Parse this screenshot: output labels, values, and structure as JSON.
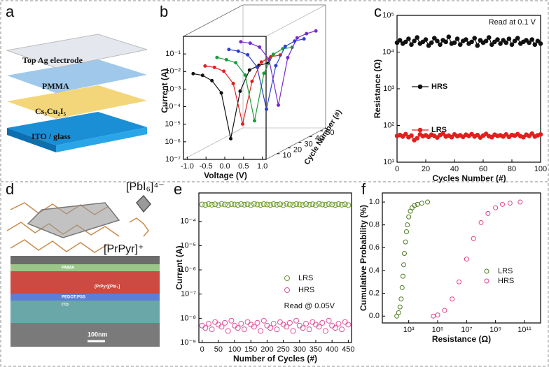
{
  "panel_labels": [
    "a",
    "b",
    "c",
    "d",
    "e",
    "f"
  ],
  "device_stack": {
    "layers": [
      "Top Ag electrode",
      "PMMA",
      "Cs₃Cu₂I₅",
      "ITO / glass"
    ]
  },
  "structure": {
    "octahedron_label": "[PbI₆]⁴⁻",
    "cation_label": "[PrPyr]⁺",
    "sem_layers": [
      "PMMA",
      "(PrPyr)[PbI₃]",
      "PEDOT:PSS",
      "ITO"
    ],
    "scale_bar": "100nm"
  },
  "chart_data": [
    {
      "type": "line",
      "xlabel": "Voltage (V)",
      "ylabel": "Current (A)",
      "zlabel": "Cycle Number (#)",
      "x": [
        -1,
        -0.75,
        -0.5,
        -0.25,
        0,
        0.25,
        0.5,
        0.75,
        1
      ],
      "series": [
        {
          "color": "#111111",
          "values": [
            0.005,
            0.004,
            0.002,
            0.0004,
            1e-06,
            0.0005,
            0.008,
            0.015,
            0.02
          ]
        },
        {
          "color": "#e0201c",
          "values": [
            0.006,
            0.005,
            0.003,
            0.0006,
            3e-06,
            0.0008,
            0.01,
            0.02,
            0.025
          ]
        },
        {
          "color": "#1a9e3a",
          "values": [
            0.008,
            0.006,
            0.004,
            0.0008,
            2e-06,
            0.001,
            0.012,
            0.025,
            0.03
          ]
        },
        {
          "color": "#2a3fd0",
          "values": [
            0.01,
            0.008,
            0.005,
            0.001,
            4e-06,
            0.0012,
            0.015,
            0.03,
            0.04
          ]
        },
        {
          "color": "#7a2ad0",
          "values": [
            0.012,
            0.01,
            0.006,
            0.0012,
            3e-06,
            0.0015,
            0.02,
            0.035,
            0.05
          ]
        }
      ],
      "xlim": [
        -1.1,
        1.1
      ],
      "xticks": [
        {
          "value": -1,
          "label": "-1.0"
        },
        -0.5,
        {
          "value": 0,
          "label": "0.0"
        },
        0.5,
        {
          "value": 1,
          "label": "1.0"
        }
      ],
      "ylim": [
        1e-07,
        1
      ],
      "ylog": true,
      "yticks": [
        {
          "value": 1e-07,
          "label": "10⁻⁷"
        },
        {
          "value": 1e-06,
          "label": "10⁻⁶"
        },
        {
          "value": 1e-05,
          "label": "10⁻⁵"
        },
        {
          "value": 0.0001,
          "label": "10⁻⁴"
        },
        {
          "value": 0.001,
          "label": "10⁻³"
        },
        {
          "value": 0.01,
          "label": "10⁻²"
        },
        {
          "value": 0.1,
          "label": "10⁻¹"
        }
      ],
      "zlim": [
        0,
        55
      ],
      "zticks": [
        10,
        20,
        30,
        40,
        50
      ]
    },
    {
      "type": "line",
      "xlabel": "Cycles Number (#)",
      "ylabel": "Resistance (Ω)",
      "annotation": "Read at 0.1 V",
      "x": [
        0,
        2,
        4,
        6,
        8,
        10,
        12,
        14,
        16,
        18,
        20,
        22,
        24,
        26,
        28,
        30,
        32,
        34,
        36,
        38,
        40,
        42,
        44,
        46,
        48,
        50,
        52,
        54,
        56,
        58,
        60,
        62,
        64,
        66,
        68,
        70,
        72,
        74,
        76,
        78,
        80,
        82,
        84,
        86,
        88,
        90,
        92,
        94,
        96,
        98,
        100
      ],
      "series": [
        {
          "name": "HRS",
          "color": "#111111",
          "values": [
            18000,
            21000,
            17000,
            19000,
            23000,
            16000,
            20000,
            25000,
            17000,
            19000,
            22000,
            15000,
            18000,
            24000,
            20000,
            16000,
            21000,
            19000,
            26000,
            17000,
            18000,
            23000,
            16000,
            20000,
            22000,
            17000,
            19000,
            24000,
            15000,
            21000,
            18000,
            20000,
            25000,
            16000,
            19000,
            22000,
            17000,
            21000,
            18000,
            23000,
            16000,
            20000,
            24000,
            17000,
            19000,
            21000,
            18000,
            22000,
            16000,
            20000,
            17000
          ]
        },
        {
          "name": "LRS",
          "color": "#e0201c",
          "values": [
            52,
            55,
            50,
            58,
            48,
            53,
            40,
            45,
            57,
            51,
            54,
            49,
            56,
            52,
            47,
            55,
            60,
            50,
            53,
            48,
            57,
            51,
            54,
            49,
            56,
            52,
            58,
            50,
            55,
            47,
            53,
            59,
            51,
            48,
            56,
            52,
            54,
            50,
            57,
            49,
            55,
            53,
            58,
            51,
            48,
            56,
            52,
            60,
            50,
            54,
            57
          ]
        }
      ],
      "xlim": [
        0,
        100
      ],
      "xticks": [
        0,
        20,
        40,
        60,
        80,
        100
      ],
      "ylim": [
        10,
        100000
      ],
      "ylog": true,
      "yticks": [
        {
          "value": 10,
          "label": "10¹"
        },
        {
          "value": 100,
          "label": "10²"
        },
        {
          "value": 1000,
          "label": "10³"
        },
        {
          "value": 10000,
          "label": "10⁴"
        },
        {
          "value": 100000,
          "label": "10⁵"
        }
      ]
    },
    {
      "type": "scatter",
      "xlabel": "Number of Cycles (#)",
      "ylabel": "Current (A)",
      "annotation": "Read @ 0.05V",
      "x": [
        0,
        10,
        20,
        30,
        40,
        50,
        60,
        70,
        80,
        90,
        100,
        110,
        120,
        130,
        140,
        150,
        160,
        170,
        180,
        190,
        200,
        210,
        220,
        230,
        240,
        250,
        260,
        270,
        280,
        290,
        300,
        310,
        320,
        330,
        340,
        350,
        360,
        370,
        380,
        390,
        400,
        410,
        420,
        430,
        440,
        450
      ],
      "series": [
        {
          "name": "LRS",
          "color": "#6b9a2a",
          "values": [
            0.0005,
            0.00048,
            0.00052,
            0.00049,
            0.00051,
            0.00047,
            0.00053,
            0.0005,
            0.00048,
            0.00052,
            0.0005,
            0.00048,
            0.00052,
            0.00049,
            0.00051,
            0.00047,
            0.00053,
            0.0005,
            0.00048,
            0.00052,
            0.0005,
            0.00048,
            0.00052,
            0.00049,
            0.00051,
            0.00047,
            0.00053,
            0.0005,
            0.00048,
            0.00052,
            0.0005,
            0.00048,
            0.00052,
            0.00049,
            0.00051,
            0.00047,
            0.00053,
            0.0005,
            0.00048,
            0.00052,
            0.0005,
            0.00048,
            0.00052,
            0.00049,
            0.00051,
            0.00047
          ]
        },
        {
          "name": "HRS",
          "color": "#e0529c",
          "values": [
            5e-09,
            4e-09,
            6e-09,
            3.5e-09,
            7e-09,
            5.5e-09,
            4.5e-09,
            6.5e-09,
            3e-09,
            8e-09,
            5e-09,
            4e-09,
            6e-09,
            3.5e-09,
            7e-09,
            5.5e-09,
            4.5e-09,
            6.5e-09,
            3e-09,
            8e-09,
            5e-09,
            4e-09,
            6e-09,
            3.5e-09,
            7e-09,
            5.5e-09,
            4.5e-09,
            6.5e-09,
            3e-09,
            8e-09,
            5e-09,
            4e-09,
            6e-09,
            3.5e-09,
            7e-09,
            5.5e-09,
            4.5e-09,
            6.5e-09,
            3e-09,
            8e-09,
            5e-09,
            4e-09,
            6e-09,
            3.5e-09,
            7e-09,
            5.5e-09
          ]
        }
      ],
      "xlim": [
        -10,
        460
      ],
      "xticks": [
        0,
        50,
        100,
        150,
        200,
        250,
        300,
        350,
        400,
        450
      ],
      "ylim": [
        1e-09,
        0.0015
      ],
      "ylog": true,
      "yticks": [
        {
          "value": 1e-09,
          "label": "10⁻⁹"
        },
        {
          "value": 1e-08,
          "label": "10⁻⁸"
        },
        {
          "value": 1e-07,
          "label": "10⁻⁷"
        },
        {
          "value": 1e-06,
          "label": "10⁻⁶"
        },
        {
          "value": 1e-05,
          "label": "10⁻⁵"
        },
        {
          "value": 0.0001,
          "label": "10⁻⁴"
        }
      ]
    },
    {
      "type": "scatter",
      "xlabel": "Resistance (Ω)",
      "ylabel": "Cumulative Probability (%)",
      "series": [
        {
          "name": "LRS",
          "color": "#4d7a1e",
          "x": [
            150,
            200,
            250,
            300,
            350,
            400,
            450,
            500,
            600,
            700,
            800,
            1000,
            1300,
            1700,
            2500,
            4000,
            8000,
            20000
          ],
          "values": [
            0,
            0.03,
            0.08,
            0.15,
            0.25,
            0.35,
            0.45,
            0.55,
            0.65,
            0.74,
            0.8,
            0.87,
            0.92,
            0.95,
            0.97,
            0.98,
            0.99,
            1.0
          ]
        },
        {
          "name": "HRS",
          "color": "#e0408a",
          "x": [
            50000,
            100000,
            300000,
            1000000,
            3000000,
            10000000,
            30000000,
            100000000,
            300000000,
            1000000000,
            3000000000,
            10000000000,
            50000000000
          ],
          "values": [
            0,
            0.01,
            0.05,
            0.15,
            0.3,
            0.5,
            0.68,
            0.82,
            0.9,
            0.95,
            0.98,
            0.99,
            1.0
          ]
        }
      ],
      "xlim": [
        15,
        1300000000000
      ],
      "xlog": true,
      "xticks": [
        {
          "value": 1000,
          "label": "10³"
        },
        {
          "value": 100000,
          "label": "10⁵"
        },
        {
          "value": 10000000,
          "label": "10⁷"
        },
        {
          "value": 1000000000,
          "label": "10⁹"
        },
        {
          "value": 100000000000,
          "label": "10¹¹"
        }
      ],
      "ylim": [
        -0.06,
        1.08
      ],
      "yticks": [
        {
          "value": 0,
          "label": "0.0"
        },
        0.2,
        0.4,
        0.6,
        0.8,
        {
          "value": 1,
          "label": "1.0"
        }
      ]
    }
  ]
}
